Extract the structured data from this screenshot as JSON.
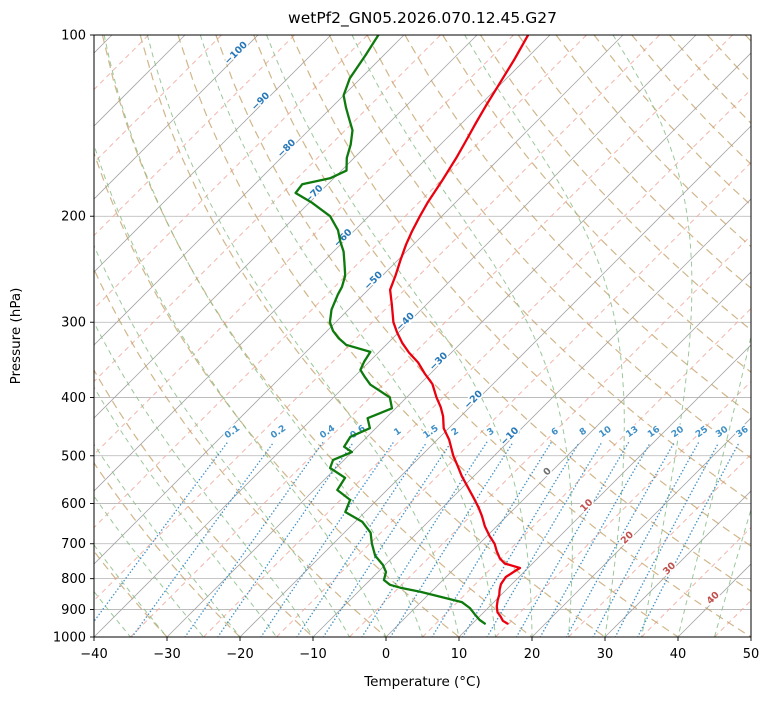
{
  "chart_data": {
    "type": "skewt-log-p",
    "title": "wetPf2_GN05.2026.070.12.45.G27",
    "xlabel": "Temperature (°C)",
    "ylabel": "Pressure (hPa)",
    "xlim": [
      -40,
      50
    ],
    "pressure_lim": [
      100,
      1000
    ],
    "skew_degrees": 45,
    "log_pressure_axis": true,
    "grid": true,
    "temp_ticks": [
      -40,
      -30,
      -20,
      -10,
      0,
      10,
      20,
      30,
      40,
      50
    ],
    "pressure_ticks": [
      100,
      200,
      300,
      400,
      500,
      600,
      700,
      800,
      900,
      1000
    ],
    "isotherms": {
      "start": -120,
      "end": 50,
      "step": 10,
      "labeled": [
        -100,
        -90,
        -80,
        -70,
        -60,
        -50,
        -40,
        -30,
        -20,
        -10,
        0,
        10,
        20,
        30,
        40
      ]
    },
    "intermediate_isotherms": {
      "start": -115,
      "end": 45,
      "step": 10
    },
    "dry_adiabats_c": {
      "start": -30,
      "end": 200,
      "step": 10
    },
    "moist_adiabats_c": {
      "start": -40,
      "end": 45,
      "step": 5
    },
    "mixing_ratios_g_kg": [
      0.1,
      0.2,
      0.4,
      0.6,
      1,
      1.5,
      2,
      3,
      4,
      6,
      8,
      10,
      13,
      16,
      20,
      25,
      30,
      36
    ],
    "mixing_label_pressure": 460,
    "mixing_line_top_pressure": 470,
    "series": [
      {
        "name": "temperature",
        "color": "#eb0010",
        "points_p_t": [
          [
            100,
            -63
          ],
          [
            110,
            -61.5
          ],
          [
            120,
            -60.3
          ],
          [
            130,
            -59.2
          ],
          [
            140,
            -58.1
          ],
          [
            150,
            -57
          ],
          [
            160,
            -56
          ],
          [
            175,
            -54.8
          ],
          [
            190,
            -53.8
          ],
          [
            200,
            -53
          ],
          [
            212,
            -52
          ],
          [
            223,
            -51
          ],
          [
            237,
            -49.6
          ],
          [
            251,
            -48.2
          ],
          [
            265,
            -47
          ],
          [
            280,
            -44.8
          ],
          [
            300,
            -42.1
          ],
          [
            312,
            -40.2
          ],
          [
            325,
            -38
          ],
          [
            337,
            -35.8
          ],
          [
            350,
            -33.2
          ],
          [
            365,
            -30.8
          ],
          [
            380,
            -28.3
          ],
          [
            400,
            -25.9
          ],
          [
            415,
            -24
          ],
          [
            430,
            -22.4
          ],
          [
            450,
            -20.7
          ],
          [
            470,
            -18.4
          ],
          [
            500,
            -15.6
          ],
          [
            520,
            -13.6
          ],
          [
            540,
            -11.7
          ],
          [
            565,
            -9.2
          ],
          [
            590,
            -6.8
          ],
          [
            610,
            -5
          ],
          [
            630,
            -3.4
          ],
          [
            655,
            -1.6
          ],
          [
            680,
            0.4
          ],
          [
            700,
            2.1
          ],
          [
            720,
            3.4
          ],
          [
            740,
            4.8
          ],
          [
            755,
            6.2
          ],
          [
            768,
            8.9
          ],
          [
            778,
            8.6
          ],
          [
            795,
            8.2
          ],
          [
            817,
            8.5
          ],
          [
            835,
            9.1
          ],
          [
            850,
            9.7
          ],
          [
            870,
            10.3
          ],
          [
            890,
            11
          ],
          [
            910,
            11.9
          ],
          [
            925,
            12.9
          ],
          [
            940,
            13.8
          ],
          [
            950,
            14.8
          ]
        ]
      },
      {
        "name": "dewpoint",
        "color": "#0e7a0e",
        "points_p_t": [
          [
            100,
            -83.5
          ],
          [
            108,
            -82.5
          ],
          [
            118,
            -81.5
          ],
          [
            126,
            -80
          ],
          [
            132,
            -78
          ],
          [
            137,
            -76.3
          ],
          [
            144,
            -74
          ],
          [
            152,
            -72.3
          ],
          [
            160,
            -71
          ],
          [
            168,
            -69.3
          ],
          [
            173,
            -70.5
          ],
          [
            177,
            -73.5
          ],
          [
            183,
            -73.2
          ],
          [
            190,
            -69.6
          ],
          [
            200,
            -65.3
          ],
          [
            211,
            -62.3
          ],
          [
            220,
            -60.5
          ],
          [
            229,
            -58.6
          ],
          [
            240,
            -56.8
          ],
          [
            251,
            -55.1
          ],
          [
            262,
            -54
          ],
          [
            270,
            -53.5
          ],
          [
            286,
            -52.3
          ],
          [
            300,
            -50.8
          ],
          [
            310,
            -49.2
          ],
          [
            319,
            -47.4
          ],
          [
            327,
            -45.5
          ],
          [
            336,
            -41.2
          ],
          [
            349,
            -40.7
          ],
          [
            360,
            -40.1
          ],
          [
            370,
            -38.5
          ],
          [
            381,
            -36.7
          ],
          [
            400,
            -32.3
          ],
          [
            417,
            -30.5
          ],
          [
            433,
            -32.5
          ],
          [
            450,
            -30.8
          ],
          [
            465,
            -32.3
          ],
          [
            483,
            -31.8
          ],
          [
            493,
            -30
          ],
          [
            508,
            -31.5
          ],
          [
            524,
            -30.8
          ],
          [
            544,
            -27.4
          ],
          [
            570,
            -26.8
          ],
          [
            592,
            -23.7
          ],
          [
            620,
            -22.7
          ],
          [
            644,
            -19
          ],
          [
            671,
            -16.4
          ],
          [
            700,
            -14.7
          ],
          [
            733,
            -12.6
          ],
          [
            759,
            -10.3
          ],
          [
            780,
            -8.9
          ],
          [
            804,
            -8.1
          ],
          [
            819,
            -6.6
          ],
          [
            828,
            -4.8
          ],
          [
            841,
            -1.5
          ],
          [
            861,
            2.7
          ],
          [
            875,
            5.6
          ],
          [
            895,
            7.5
          ],
          [
            916,
            9
          ],
          [
            937,
            10.5
          ],
          [
            950,
            11.7
          ]
        ]
      }
    ],
    "colors": {
      "grid": "#b3b3b3",
      "isotherm": "#a6a6a6",
      "isotherm_minor": "#f2aa9e",
      "dry_adiabat": "#c29d63",
      "moist_adiabat": "#8abd8a",
      "mixing_ratio": "#3f8fc5",
      "label_cold": "#2878b8",
      "label_zero": "#6f6f6f",
      "label_warm": "#c0504d",
      "axis": "#000000"
    }
  }
}
